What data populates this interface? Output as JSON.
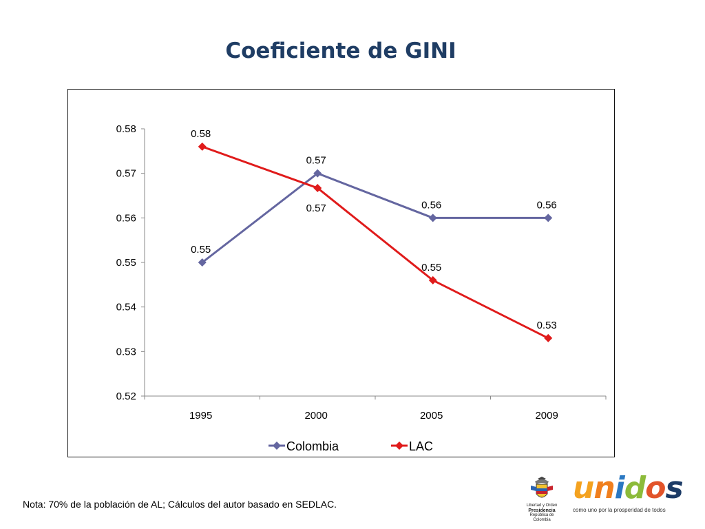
{
  "slide": {
    "title": "Coeficiente de GINI",
    "note": "Nota: 70% de la población de AL; Cálculos del autor basado en SEDLAC."
  },
  "logos": {
    "presidencia": {
      "line1": "Libertad y Orden",
      "line2": "Presidencia",
      "line3": "República de Colombia"
    },
    "unidos": {
      "letters": [
        "u",
        "n",
        "i",
        "d",
        "o",
        "s"
      ],
      "tagline": "como uno por la prosperidad de todos",
      "colors": [
        "#f4a21f",
        "#f07f1d",
        "#2a78c2",
        "#8cbb3a",
        "#e2542a",
        "#1c3b66"
      ]
    }
  },
  "chart_data": {
    "type": "line",
    "title": "",
    "xlabel": "",
    "ylabel": "",
    "categories": [
      "1995 ",
      "2000 ",
      "2005 ",
      "2009 "
    ],
    "ylim": [
      0.52,
      0.58
    ],
    "yticks": [
      0.52,
      0.53,
      0.54,
      0.55,
      0.56,
      0.57,
      0.58
    ],
    "ytick_labels": [
      "0.52 ",
      "0.53 ",
      "0.54 ",
      "0.55 ",
      "0.56 ",
      "0.57 ",
      "0.58 "
    ],
    "grid": false,
    "legend": "bottom",
    "series": [
      {
        "name": "Colombia",
        "values": [
          0.55,
          0.57,
          0.56,
          0.56
        ],
        "labels": [
          "0.55 ",
          "0.57 ",
          "0.56 ",
          "0.56 "
        ],
        "label_position": [
          "above",
          "above",
          "above",
          "above"
        ],
        "color": "#6466a0",
        "marker": "diamond"
      },
      {
        "name": "LAC",
        "values": [
          0.576,
          0.5667,
          0.546,
          0.533
        ],
        "labels": [
          "0.58 ",
          "0.57 ",
          "0.55 ",
          "0.53 "
        ],
        "label_position": [
          "above",
          "below",
          "above",
          "above"
        ],
        "color": "#e01b1b",
        "marker": "diamond"
      }
    ]
  }
}
